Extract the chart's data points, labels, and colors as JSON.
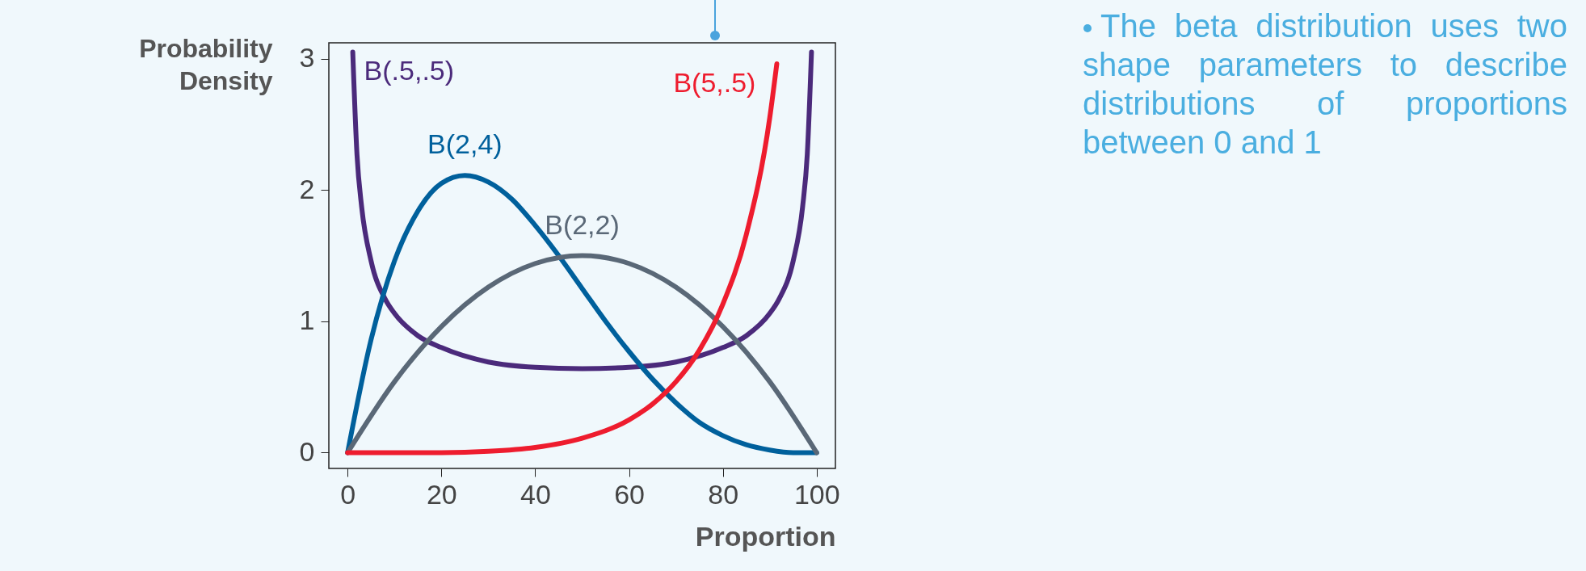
{
  "chart_data": {
    "type": "line",
    "xlabel": "Proportion",
    "ylabel": "Probability Density",
    "xlim": [
      -4,
      104
    ],
    "ylim": [
      -0.12,
      3.12
    ],
    "xticks": [
      0,
      20,
      40,
      60,
      80,
      100
    ],
    "yticks": [
      0,
      1,
      2,
      3
    ],
    "grid": false,
    "legend": false,
    "marker": "none",
    "line_style": "solid",
    "series": [
      {
        "name": "B(.5,.5)",
        "color": "#4b2a7b",
        "x": [
          1.1,
          2,
          3,
          5,
          8,
          10,
          15,
          20,
          30,
          40,
          50,
          60,
          70,
          80,
          85,
          90,
          92,
          95,
          97,
          98,
          98.9
        ],
        "values": [
          3.05,
          2.27,
          1.87,
          1.46,
          1.17,
          1.06,
          0.89,
          0.8,
          0.69,
          0.65,
          0.64,
          0.65,
          0.69,
          0.8,
          0.89,
          1.06,
          1.17,
          1.46,
          1.87,
          2.27,
          3.05
        ]
      },
      {
        "name": "B(2,4)",
        "color": "#00609c",
        "x": [
          0,
          5,
          10,
          15,
          20,
          25,
          30,
          35,
          40,
          45,
          50,
          55,
          60,
          65,
          70,
          75,
          80,
          85,
          90,
          95,
          100
        ],
        "values": [
          0,
          0.86,
          1.46,
          1.84,
          2.05,
          2.11,
          2.06,
          1.93,
          1.73,
          1.5,
          1.25,
          1.0,
          0.77,
          0.56,
          0.38,
          0.23,
          0.13,
          0.06,
          0.02,
          0.0,
          0
        ]
      },
      {
        "name": "B(2,2)",
        "color": "#5a6877",
        "x": [
          0,
          10,
          20,
          30,
          40,
          50,
          60,
          70,
          80,
          90,
          100
        ],
        "values": [
          0,
          0.54,
          0.96,
          1.26,
          1.44,
          1.5,
          1.44,
          1.26,
          0.96,
          0.54,
          0
        ]
      },
      {
        "name": "B(5,.5)",
        "color": "#ee1c2e",
        "x": [
          0,
          10,
          20,
          30,
          40,
          50,
          60,
          65,
          70,
          75,
          80,
          85,
          90,
          91.5
        ],
        "values": [
          0,
          0.0,
          0.0,
          0.01,
          0.04,
          0.11,
          0.25,
          0.37,
          0.54,
          0.78,
          1.13,
          1.66,
          2.55,
          2.96
        ]
      }
    ],
    "annotations": [
      "The beta distribution uses two shape parameters to describe distributions of proportions between 0 and 1"
    ]
  }
}
